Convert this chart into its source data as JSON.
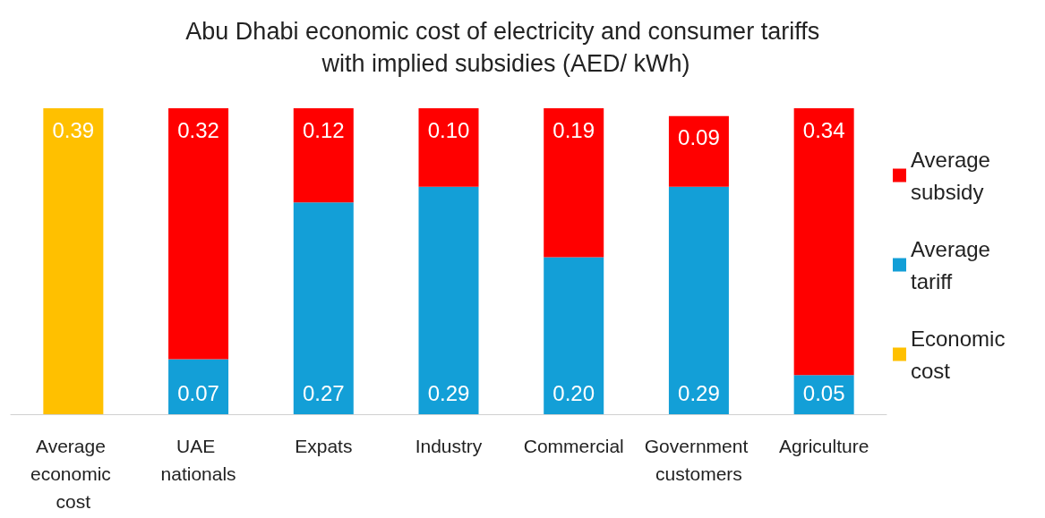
{
  "chart_data": {
    "type": "bar",
    "title": "Abu Dhabi economic cost of electricity and consumer tariffs with implied subsidies (AED/ kWh)",
    "categories": [
      "Average economic cost",
      "UAE nationals",
      "Expats",
      "Industry",
      "Commercial",
      "Government customers",
      "Agriculture"
    ],
    "stacked": true,
    "legend": "right",
    "series": [
      {
        "name": "Economic cost",
        "color": "#ffc000",
        "values": [
          0.39,
          null,
          null,
          null,
          null,
          null,
          null
        ],
        "value_labels": [
          "0.39",
          null,
          null,
          null,
          null,
          null,
          null
        ]
      },
      {
        "name": "Average tariff",
        "color": "#139fd7",
        "values": [
          null,
          0.07,
          0.27,
          0.29,
          0.2,
          0.29,
          0.05
        ],
        "value_labels": [
          null,
          "0.07",
          "0.27",
          "0.29",
          "0.20",
          "0.29",
          "0.05"
        ]
      },
      {
        "name": "Average subsidy",
        "color": "#ff0000",
        "values": [
          null,
          0.32,
          0.12,
          0.1,
          0.19,
          0.09,
          0.34
        ],
        "value_labels": [
          null,
          "0.32",
          "0.12",
          "0.10",
          "0.19",
          "0.09",
          "0.34"
        ]
      }
    ]
  }
}
